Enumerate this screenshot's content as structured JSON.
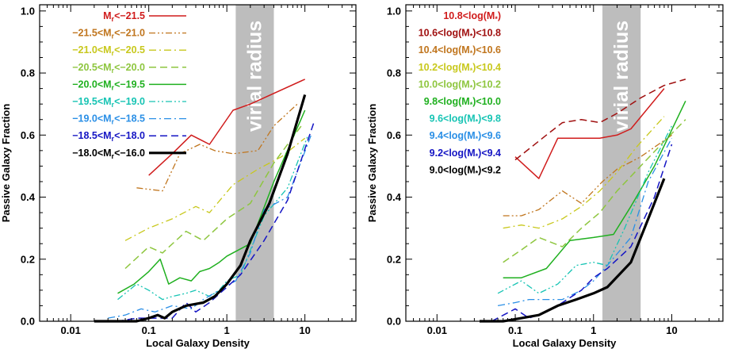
{
  "chart_data": [
    {
      "type": "line",
      "xlabel": "Local Galaxy Density",
      "ylabel": "Passive Galaxy Fraction",
      "xscale": "log",
      "xlim": [
        0.004,
        45
      ],
      "ylim": [
        0.0,
        1.02
      ],
      "x_ticks": [
        0.01,
        0.1,
        1,
        10
      ],
      "x_tick_labels": [
        "0.01",
        "0.1",
        "1",
        "10"
      ],
      "y_ticks": [
        0.0,
        0.2,
        0.4,
        0.6,
        0.8,
        1.0
      ],
      "y_tick_labels": [
        "0.0",
        "0.2",
        "0.4",
        "0.6",
        "0.8",
        "1.0"
      ],
      "shaded_band": {
        "x_range": [
          1.3,
          4.0
        ],
        "label": "virial radius",
        "color": "#bdbdbd"
      },
      "legend_position": "top-left",
      "series": [
        {
          "name": "M_r<−21.5",
          "label_main": "M",
          "label_sub": "r",
          "label_rest": "<−21.5",
          "color": "#d01c1c",
          "style": "solid",
          "width": 1.5,
          "x": [
            0.1,
            0.2,
            0.35,
            0.6,
            1.2,
            2.0,
            10.0
          ],
          "y": [
            0.47,
            0.54,
            0.6,
            0.57,
            0.68,
            0.7,
            0.78
          ]
        },
        {
          "name": "−21.5<M_r<−21.0",
          "label_main": "−21.5<M",
          "label_sub": "r",
          "label_rest": "<−21.0",
          "color": "#c0751d",
          "style": "dashdotdot",
          "width": 1.3,
          "x": [
            0.07,
            0.15,
            0.25,
            0.45,
            0.7,
            1.2,
            2.5,
            4.0,
            8.0
          ],
          "y": [
            0.43,
            0.42,
            0.54,
            0.57,
            0.55,
            0.54,
            0.55,
            0.63,
            0.7
          ]
        },
        {
          "name": "−21.0<M_r<−20.5",
          "label_main": "−21.0<M",
          "label_sub": "r",
          "label_rest": "<−20.5",
          "color": "#c8c81c",
          "style": "dashdot",
          "width": 1.3,
          "x": [
            0.05,
            0.1,
            0.2,
            0.4,
            0.6,
            1.2,
            2.5,
            5.0,
            10.0
          ],
          "y": [
            0.26,
            0.3,
            0.33,
            0.37,
            0.35,
            0.44,
            0.49,
            0.53,
            0.59
          ]
        },
        {
          "name": "−20.5<M_r<−20.0",
          "label_main": "−20.5<M",
          "label_sub": "r",
          "label_rest": "<−20.0",
          "color": "#8ec63f",
          "style": "dashed",
          "width": 1.5,
          "x": [
            0.05,
            0.1,
            0.15,
            0.3,
            0.5,
            1.0,
            2.0,
            4.0,
            9.0
          ],
          "y": [
            0.17,
            0.24,
            0.22,
            0.29,
            0.26,
            0.33,
            0.38,
            0.51,
            0.63
          ]
        },
        {
          "name": "−20.0<M_r<−19.5",
          "label_main": "−20.0<M",
          "label_sub": "r",
          "label_rest": "<−19.5",
          "color": "#1fb01f",
          "style": "solid",
          "width": 1.5,
          "x": [
            0.04,
            0.065,
            0.1,
            0.14,
            0.18,
            0.25,
            0.35,
            0.45,
            0.6,
            0.8,
            1.0,
            2.0,
            4.0,
            10.0
          ],
          "y": [
            0.09,
            0.12,
            0.16,
            0.2,
            0.12,
            0.14,
            0.13,
            0.16,
            0.17,
            0.19,
            0.21,
            0.25,
            0.45,
            0.68
          ]
        },
        {
          "name": "−19.5<M_r<−19.0",
          "label_main": "−19.5<M",
          "label_sub": "r",
          "label_rest": "<−19.0",
          "color": "#17c4b4",
          "style": "dashdotdot",
          "width": 1.3,
          "x": [
            0.04,
            0.07,
            0.1,
            0.15,
            0.2,
            0.3,
            0.4,
            0.6,
            0.8,
            1.0,
            1.5,
            3.0,
            6.0,
            11.0
          ],
          "y": [
            0.07,
            0.12,
            0.1,
            0.07,
            0.08,
            0.09,
            0.1,
            0.08,
            0.1,
            0.13,
            0.15,
            0.34,
            0.43,
            0.6
          ]
        },
        {
          "name": "−19.0<M_r<−18.5",
          "label_main": "−19.0<M",
          "label_sub": "r",
          "label_rest": "<−18.5",
          "color": "#2a8fe6",
          "style": "dashdot",
          "width": 1.3,
          "x": [
            0.03,
            0.05,
            0.08,
            0.12,
            0.2,
            0.35,
            0.5,
            0.8,
            1.3,
            2.0,
            3.0,
            6.0,
            12.0
          ],
          "y": [
            0.01,
            0.02,
            0.04,
            0.03,
            0.05,
            0.04,
            0.07,
            0.1,
            0.13,
            0.22,
            0.36,
            0.4,
            0.6
          ]
        },
        {
          "name": "−18.5<M_r<−18.0",
          "label_main": "−18.5<M",
          "label_sub": "r",
          "label_rest": "<−18.0",
          "color": "#1515c4",
          "style": "dashed",
          "width": 1.5,
          "x": [
            0.02,
            0.04,
            0.07,
            0.12,
            0.2,
            0.3,
            0.4,
            0.6,
            1.0,
            1.5,
            3.0,
            6.0,
            13.0
          ],
          "y": [
            0.0,
            0.0,
            0.01,
            0.01,
            0.01,
            0.06,
            0.03,
            0.06,
            0.11,
            0.15,
            0.26,
            0.39,
            0.64
          ]
        },
        {
          "name": "−18.0<M_r<−16.0",
          "label_main": "−18.0<M",
          "label_sub": "r",
          "label_rest": "<−16.0",
          "color": "#000000",
          "style": "solid",
          "width": 3.2,
          "x": [
            0.02,
            0.04,
            0.07,
            0.1,
            0.13,
            0.16,
            0.2,
            0.3,
            0.5,
            0.7,
            1.0,
            1.5,
            2.0,
            3.5,
            6.0,
            10.0
          ],
          "y": [
            0.0,
            0.0,
            0.0,
            0.01,
            0.02,
            0.01,
            0.03,
            0.05,
            0.06,
            0.08,
            0.12,
            0.18,
            0.26,
            0.38,
            0.54,
            0.73
          ]
        }
      ]
    },
    {
      "type": "line",
      "xlabel": "Local Galaxy Density",
      "ylabel": "Passive Galaxy Fraction",
      "xscale": "log",
      "xlim": [
        0.004,
        45
      ],
      "ylim": [
        0.0,
        1.02
      ],
      "x_ticks": [
        0.01,
        0.1,
        1,
        10
      ],
      "x_tick_labels": [
        "0.01",
        "0.1",
        "1",
        "10"
      ],
      "y_ticks": [
        0.0,
        0.2,
        0.4,
        0.6,
        0.8,
        1.0
      ],
      "y_tick_labels": [
        "0.0",
        "0.2",
        "0.4",
        "0.6",
        "0.8",
        "1.0"
      ],
      "shaded_band": {
        "x_range": [
          1.3,
          4.0
        ],
        "label": "virial radius",
        "color": "#bdbdbd"
      },
      "legend_position": "top-left",
      "series": [
        {
          "name": "10.8<log(M*)",
          "label_main": "10.8<log(M",
          "label_sub": "*",
          "label_rest": ")",
          "color": "#d01c1c",
          "style": "solid",
          "width": 1.5,
          "x": [
            0.1,
            0.2,
            0.35,
            0.6,
            1.2,
            2.0,
            3.0,
            8.0
          ],
          "y": [
            0.53,
            0.46,
            0.59,
            0.59,
            0.59,
            0.6,
            0.62,
            0.75
          ]
        },
        {
          "name": "10.6<log(M*)<10.8",
          "label_main": "10.6<log(M",
          "label_sub": "*",
          "label_rest": ")<10.8",
          "color": "#a01010",
          "style": "dashed",
          "width": 1.5,
          "x": [
            0.1,
            0.25,
            0.4,
            0.7,
            1.2,
            2.0,
            4.0,
            8.0,
            15.0
          ],
          "y": [
            0.52,
            0.6,
            0.64,
            0.65,
            0.64,
            0.67,
            0.72,
            0.76,
            0.78
          ]
        },
        {
          "name": "10.4<log(M*)<10.6",
          "label_main": "10.4<log(M",
          "label_sub": "*",
          "label_rest": ")<10.6",
          "color": "#c0751d",
          "style": "dashdotdot",
          "width": 1.3,
          "x": [
            0.07,
            0.12,
            0.2,
            0.4,
            0.7,
            1.3,
            2.0,
            4.0,
            10.0
          ],
          "y": [
            0.34,
            0.34,
            0.36,
            0.42,
            0.38,
            0.45,
            0.49,
            0.53,
            0.6
          ]
        },
        {
          "name": "10.2<log(M*)<10.4",
          "label_main": "10.2<log(M",
          "label_sub": "*",
          "label_rest": ")<10.4",
          "color": "#c8c81c",
          "style": "dashdot",
          "width": 1.3,
          "x": [
            0.07,
            0.12,
            0.2,
            0.4,
            0.7,
            1.2,
            2.0,
            3.5,
            8.0
          ],
          "y": [
            0.3,
            0.31,
            0.3,
            0.33,
            0.37,
            0.42,
            0.48,
            0.56,
            0.66
          ]
        },
        {
          "name": "10.0<log(M*)<10.2",
          "label_main": "10.0<log(M",
          "label_sub": "*",
          "label_rest": ")<10.2",
          "color": "#8ec63f",
          "style": "dashed",
          "width": 1.5,
          "x": [
            0.07,
            0.12,
            0.2,
            0.4,
            0.7,
            1.2,
            2.0,
            4.0,
            8.0,
            15.0
          ],
          "y": [
            0.19,
            0.23,
            0.27,
            0.24,
            0.3,
            0.35,
            0.42,
            0.5,
            0.58,
            0.65
          ]
        },
        {
          "name": "9.8<log(M*)<10.0",
          "label_main": "9.8<log(M",
          "label_sub": "*",
          "label_rest": ")<10.0",
          "color": "#1fb01f",
          "style": "solid",
          "width": 1.5,
          "x": [
            0.07,
            0.12,
            0.25,
            0.5,
            1.0,
            1.8,
            3.0,
            6.0,
            15.0
          ],
          "y": [
            0.14,
            0.14,
            0.17,
            0.26,
            0.27,
            0.28,
            0.37,
            0.5,
            0.71
          ]
        },
        {
          "name": "9.6<log(M*)<9.8",
          "label_main": "9.6<log(M",
          "label_sub": "*",
          "label_rest": ")<9.8",
          "color": "#17c4b4",
          "style": "dashdotdot",
          "width": 1.3,
          "x": [
            0.06,
            0.12,
            0.2,
            0.35,
            0.6,
            1.0,
            1.5,
            2.5,
            5.0,
            10.0
          ],
          "y": [
            0.09,
            0.13,
            0.09,
            0.12,
            0.18,
            0.19,
            0.18,
            0.3,
            0.48,
            0.63
          ]
        },
        {
          "name": "9.4<log(M*)<9.6",
          "label_main": "9.4<log(M",
          "label_sub": "*",
          "label_rest": ")<9.6",
          "color": "#2a8fe6",
          "style": "dashdot",
          "width": 1.3,
          "x": [
            0.06,
            0.1,
            0.15,
            0.25,
            0.4,
            0.7,
            1.0,
            1.5,
            3.0,
            5.0,
            10.0
          ],
          "y": [
            0.05,
            0.06,
            0.07,
            0.07,
            0.07,
            0.1,
            0.13,
            0.18,
            0.27,
            0.45,
            0.59
          ]
        },
        {
          "name": "9.2<log(M*)<9.4",
          "label_main": "9.2<log(M",
          "label_sub": "*",
          "label_rest": ")<9.4",
          "color": "#1515c4",
          "style": "dashed",
          "width": 1.5,
          "x": [
            0.05,
            0.1,
            0.15,
            0.25,
            0.4,
            0.7,
            1.0,
            1.5,
            3.0,
            6.0,
            10.0
          ],
          "y": [
            0.0,
            0.04,
            0.01,
            0.03,
            0.06,
            0.1,
            0.14,
            0.17,
            0.24,
            0.4,
            0.57
          ]
        },
        {
          "name": "9.0<log(M*)<9.2",
          "label_main": "9.0<log(M",
          "label_sub": "*",
          "label_rest": ")<9.2",
          "color": "#000000",
          "style": "solid",
          "width": 3.2,
          "x": [
            0.035,
            0.07,
            0.12,
            0.2,
            0.35,
            0.6,
            1.0,
            1.5,
            3.0,
            5.0,
            8.0
          ],
          "y": [
            0.0,
            0.0,
            0.01,
            0.02,
            0.05,
            0.07,
            0.09,
            0.11,
            0.19,
            0.33,
            0.46
          ]
        }
      ]
    }
  ]
}
